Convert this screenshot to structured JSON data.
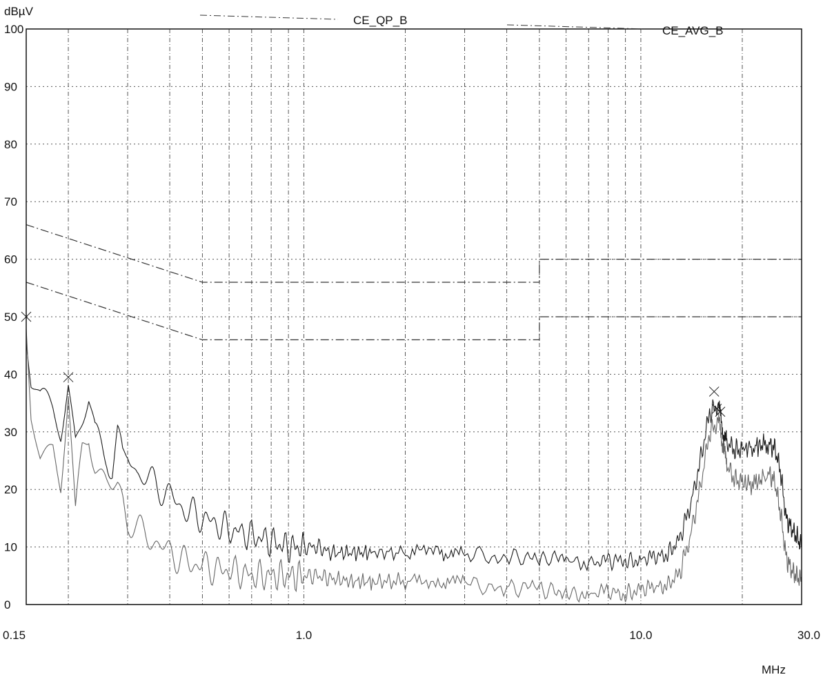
{
  "chart_data": {
    "type": "line",
    "title": "",
    "ylabel": "dBµV",
    "xlabel": "MHz",
    "x_scale": "log",
    "xlim": [
      0.15,
      30.0
    ],
    "ylim": [
      0,
      100
    ],
    "grid": true,
    "legend_placement": "top",
    "y_ticks": [
      0,
      10,
      20,
      30,
      40,
      50,
      60,
      70,
      80,
      90,
      100
    ],
    "y_tick_labels": [
      "0",
      "10",
      "20",
      "30",
      "40",
      "50",
      "60",
      "70",
      "80",
      "90",
      "100"
    ],
    "x_tick_labels": [
      {
        "x": 0.15,
        "label": "0.15"
      },
      {
        "x": 1.0,
        "label": "1.0"
      },
      {
        "x": 10.0,
        "label": "10.0"
      },
      {
        "x": 30.0,
        "label": "30.0"
      }
    ],
    "limit_lines": [
      {
        "name": "CE_QP_B",
        "style": "dash-dot",
        "color": "#333333",
        "points": [
          [
            0.15,
            66
          ],
          [
            0.5,
            56
          ],
          [
            0.5,
            56
          ],
          [
            5.0,
            56
          ],
          [
            5.0,
            60
          ],
          [
            30.0,
            60
          ]
        ]
      },
      {
        "name": "CE_AVG_B",
        "style": "dash-dot",
        "color": "#333333",
        "points": [
          [
            0.15,
            56
          ],
          [
            0.5,
            46
          ],
          [
            0.5,
            46
          ],
          [
            5.0,
            46
          ],
          [
            5.0,
            50
          ],
          [
            30.0,
            50
          ]
        ]
      }
    ],
    "series": [
      {
        "color": "#1a1a1a",
        "x": [
          0.15,
          0.155,
          0.165,
          0.18,
          0.19,
          0.2,
          0.21,
          0.22,
          0.23,
          0.24,
          0.25,
          0.26,
          0.27,
          0.28,
          0.29,
          0.3,
          0.32,
          0.34,
          0.36,
          0.38,
          0.4,
          0.43,
          0.46,
          0.5,
          0.55,
          0.6,
          0.7,
          0.8,
          0.9,
          1.0,
          1.1,
          1.2,
          1.4,
          1.6,
          2.0,
          2.5,
          3.0,
          4.0,
          5.0,
          6.0,
          7.0,
          8.0,
          9.0,
          10.0,
          11.0,
          12.0,
          13.0,
          14.0,
          15.0,
          16.0,
          17.0,
          17.5,
          18.0,
          19.0,
          20.0,
          22.0,
          24.0,
          25.0,
          26.0,
          27.0,
          28.0,
          29.0,
          30.0
        ],
        "y": [
          49,
          40,
          35,
          33,
          30,
          39,
          29,
          32,
          35,
          29,
          28,
          27,
          24,
          29,
          25,
          26,
          23,
          22,
          21,
          20,
          19,
          17,
          16,
          15,
          14,
          13,
          12,
          11,
          10,
          10,
          10,
          9,
          9,
          9,
          9,
          9,
          9,
          8.5,
          8,
          7.5,
          7.5,
          7.5,
          7.5,
          8,
          8,
          9,
          11,
          17,
          25,
          33,
          35,
          30,
          28,
          27,
          27,
          27.5,
          28,
          27,
          23,
          15,
          13,
          12,
          10
        ]
      },
      {
        "color": "#666666",
        "x": [
          0.15,
          0.155,
          0.165,
          0.18,
          0.19,
          0.2,
          0.21,
          0.22,
          0.23,
          0.24,
          0.25,
          0.26,
          0.27,
          0.28,
          0.29,
          0.3,
          0.32,
          0.34,
          0.36,
          0.38,
          0.4,
          0.43,
          0.46,
          0.5,
          0.55,
          0.6,
          0.7,
          0.8,
          0.9,
          1.0,
          1.1,
          1.2,
          1.4,
          1.6,
          2.0,
          2.5,
          3.0,
          4.0,
          5.0,
          6.0,
          7.0,
          8.0,
          9.0,
          10.0,
          11.0,
          12.0,
          13.0,
          14.0,
          15.0,
          16.0,
          17.0,
          17.5,
          18.0,
          19.0,
          20.0,
          22.0,
          24.0,
          25.0,
          26.0,
          27.0,
          28.0,
          29.0,
          30.0
        ],
        "y": [
          47,
          32,
          25,
          28,
          22,
          37,
          14,
          26,
          30,
          25,
          23,
          21,
          20,
          20,
          18,
          15,
          13,
          12,
          11,
          10,
          9,
          8,
          7,
          7,
          6,
          6,
          5,
          5,
          5,
          5,
          5,
          4.5,
          4,
          4,
          4,
          4,
          3.5,
          3,
          2.5,
          2,
          2,
          2,
          2,
          2.5,
          3,
          3.5,
          5,
          12,
          20,
          30,
          32,
          28,
          24,
          22,
          21,
          21,
          23,
          21,
          16,
          8,
          6,
          5,
          4
        ]
      }
    ],
    "peak_markers": [
      {
        "x": 0.15,
        "y": 50
      },
      {
        "x": 0.2,
        "y": 39.5
      },
      {
        "x": 16.5,
        "y": 37
      },
      {
        "x": 16.8,
        "y": 34
      },
      {
        "x": 17.2,
        "y": 33.5
      }
    ]
  }
}
